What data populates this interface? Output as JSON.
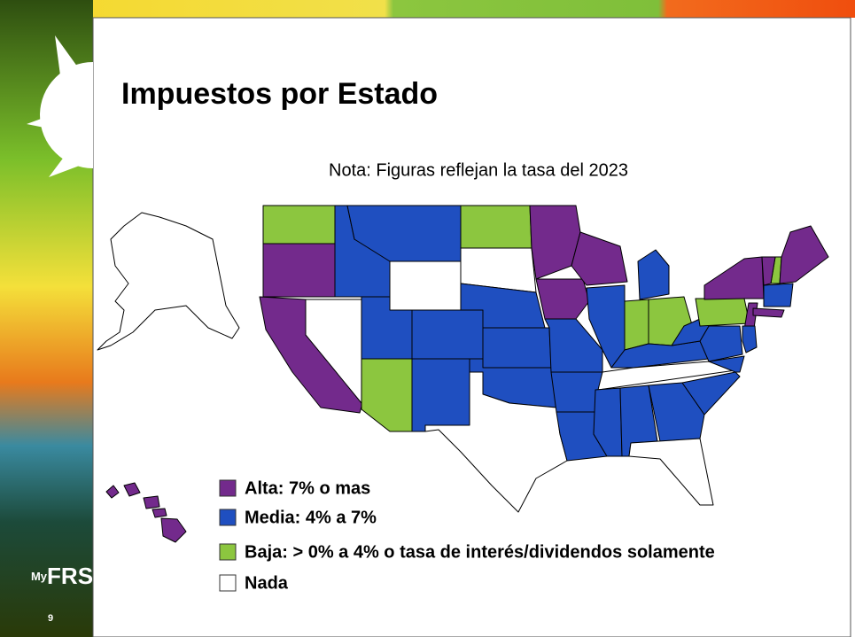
{
  "title": "Impuestos por Estado",
  "note": "Nota: Figuras reflejan la tasa del 2023",
  "legend": [
    {
      "label": "Alta: 7% o mas",
      "color": "#732a8c"
    },
    {
      "label": "Media: 4% a 7%",
      "color": "#1f4fc0"
    },
    {
      "label": "Baja: > 0% a 4% o tasa de interés/dividendos solamente",
      "color": "#8cc63f"
    },
    {
      "label": "Nada",
      "color": "#ffffff"
    }
  ],
  "logo": {
    "prefix": "My",
    "name": "FRS"
  },
  "slide_number": "9"
}
